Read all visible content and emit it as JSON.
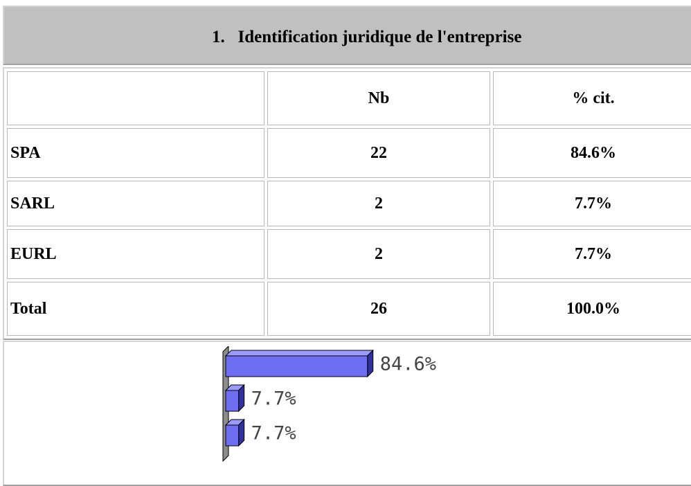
{
  "header": {
    "title": "1.   Identification juridique de l'entreprise"
  },
  "table": {
    "columns": [
      "Nb",
      "% cit."
    ],
    "rows": [
      [
        "SPA",
        22,
        "84.6%"
      ],
      [
        "SARL",
        2,
        "7.7%"
      ],
      [
        "EURL",
        2,
        "7.7%"
      ],
      [
        "Total",
        26,
        "100.0%"
      ]
    ]
  },
  "chart_data": {
    "type": "bar",
    "orientation": "horizontal",
    "values": [
      84.6,
      7.7,
      7.7
    ],
    "value_labels": [
      "84.6%",
      "7.7%",
      "7.7%"
    ],
    "color": "#6e6ef2"
  }
}
